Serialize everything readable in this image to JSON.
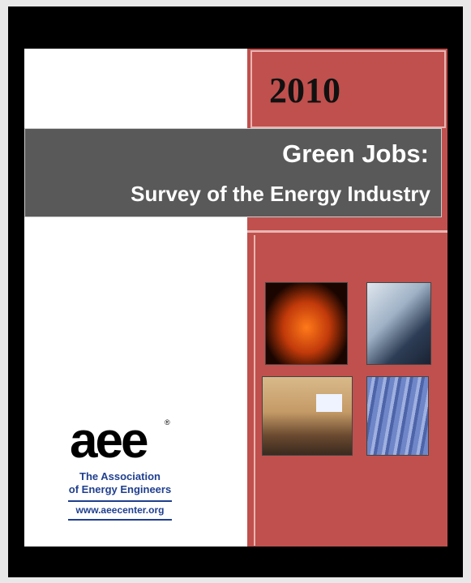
{
  "cover": {
    "year": "2010",
    "title": "Green Jobs:",
    "subtitle": "Survey of the Energy Industry",
    "logo": {
      "mark": "aee",
      "registered": "®",
      "name_lines": [
        "The Association",
        "of Energy Engineers"
      ],
      "url": "www.aeecenter.org"
    }
  }
}
